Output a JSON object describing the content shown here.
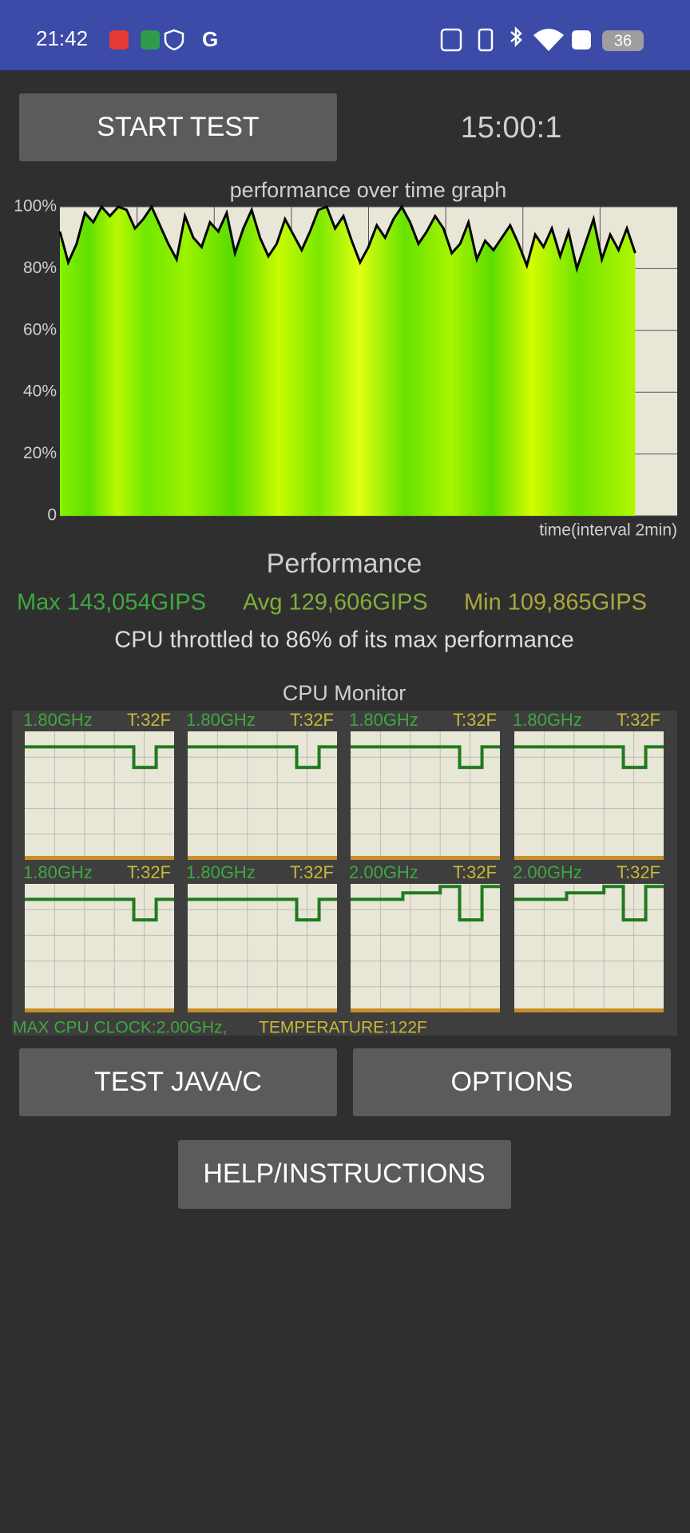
{
  "status_bar": {
    "time": "21:42",
    "battery": "36"
  },
  "buttons": {
    "start_test": "START TEST",
    "test_java_c": "TEST JAVA/C",
    "options": "OPTIONS",
    "help": "HELP/INSTRUCTIONS"
  },
  "timer": "15:00:1",
  "chart_data": {
    "type": "line",
    "title": "performance over time graph",
    "x_label": "time(interval 2min)",
    "ylim": [
      0,
      100
    ],
    "yticks": [
      0,
      {
        "value": 20,
        "label": "20%"
      },
      {
        "value": 40,
        "label": "40%"
      },
      {
        "value": 60,
        "label": "60%"
      },
      {
        "value": 80,
        "label": "80%"
      },
      {
        "value": 100,
        "label": "100%"
      }
    ],
    "grid": true,
    "series": [
      {
        "color": "#000000",
        "values": [
          92,
          82,
          88,
          98,
          95,
          100,
          97,
          100,
          99,
          93,
          96,
          100,
          94,
          88,
          83,
          97,
          90,
          87,
          95,
          92,
          98,
          85,
          93,
          99,
          90,
          84,
          88,
          96,
          91,
          86,
          92,
          99,
          100,
          93,
          97,
          89,
          82,
          87,
          94,
          90,
          96,
          100,
          95,
          88,
          92,
          97,
          93,
          85,
          88,
          95,
          83,
          89,
          86,
          90,
          94,
          88,
          81,
          91,
          87,
          93,
          84,
          92,
          80,
          88,
          96,
          83,
          91,
          86,
          93,
          85
        ]
      }
    ]
  },
  "performance": {
    "heading": "Performance",
    "max": "Max 143,054GIPS",
    "avg": "Avg 129,606GIPS",
    "min": "Min 109,865GIPS",
    "throttle": "CPU throttled to 86% of its max performance"
  },
  "cpu_monitor": {
    "title": "CPU Monitor",
    "cores": [
      {
        "freq": "1.80GHz",
        "temp": "T:32F"
      },
      {
        "freq": "1.80GHz",
        "temp": "T:32F"
      },
      {
        "freq": "1.80GHz",
        "temp": "T:32F"
      },
      {
        "freq": "1.80GHz",
        "temp": "T:32F"
      },
      {
        "freq": "1.80GHz",
        "temp": "T:32F"
      },
      {
        "freq": "1.80GHz",
        "temp": "T:32F"
      },
      {
        "freq": "2.00GHz",
        "temp": "T:32F"
      },
      {
        "freq": "2.00GHz",
        "temp": "T:32F"
      }
    ],
    "max_clock": "MAX CPU CLOCK:2.00GHz,",
    "temperature": "TEMPERATURE:122F"
  }
}
